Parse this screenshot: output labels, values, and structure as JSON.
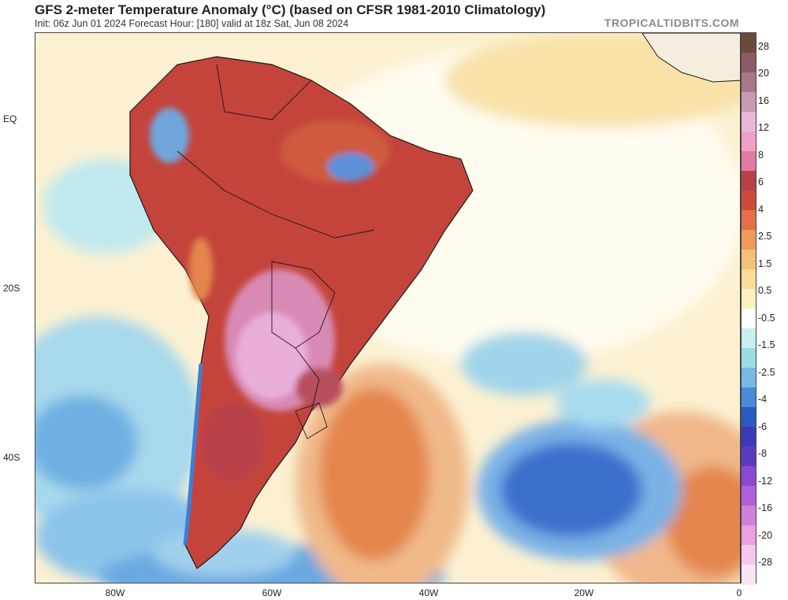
{
  "header": {
    "title": "GFS 2-meter Temperature Anomaly (°C) (based on CFSR 1981-2010 Climatology)",
    "subtitle": "Init: 06z Jun 01 2024   Forecast Hour: [180]   valid at 18z Sat, Jun 08 2024",
    "brand": "TROPICALTIDBITS.COM"
  },
  "map": {
    "region": "South America and South Atlantic",
    "lat_labels": [
      "EQ",
      "20S",
      "40S"
    ],
    "lon_labels": [
      "80W",
      "60W",
      "40W",
      "20W",
      "0"
    ]
  },
  "colorbar": {
    "labels": [
      "28",
      "20",
      "16",
      "12",
      "8",
      "6",
      "4",
      "2.5",
      "1.5",
      "0.5",
      "-0.5",
      "-1.5",
      "-2.5",
      "-4",
      "-6",
      "-8",
      "-12",
      "-16",
      "-20",
      "-28"
    ],
    "colors": [
      "#6b4a3a",
      "#8e5a66",
      "#a8788a",
      "#c79ab0",
      "#e8b8d8",
      "#f0a0c8",
      "#e07aa0",
      "#b8404a",
      "#d04a3a",
      "#e4704a",
      "#ee9a5a",
      "#f4c07a",
      "#f8dc98",
      "#fcf0c0",
      "#ffffff",
      "#c8eef0",
      "#9adce6",
      "#7ab8e8",
      "#4a8ad8",
      "#2a5ac0",
      "#3a3ab8",
      "#5a3ac0",
      "#8a4ad0",
      "#b060d8",
      "#d080d8",
      "#e8a0e0",
      "#f4c8ec",
      "#fbe4f4"
    ]
  }
}
